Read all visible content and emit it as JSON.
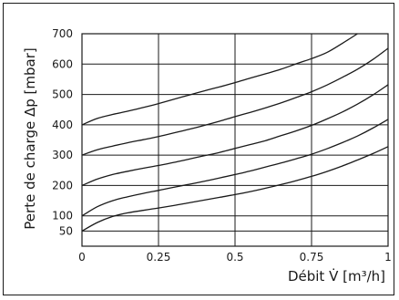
{
  "chart_data": {
    "type": "line",
    "title": "",
    "xlabel": "Débit V̇ [m³/h]",
    "ylabel": "Perte de charge Δp [mbar]",
    "xlim": [
      0,
      1
    ],
    "ylim": [
      0,
      700
    ],
    "x_ticks": [
      "0",
      "0.25",
      "0.5",
      "0.75",
      "1"
    ],
    "y_ticks": [
      "50",
      "100",
      "200",
      "300",
      "400",
      "500",
      "600",
      "700"
    ],
    "y_tick_values": [
      50,
      100,
      200,
      300,
      400,
      500,
      600,
      700
    ],
    "x_grid": [
      0,
      0.25,
      0.5,
      0.75,
      1
    ],
    "grid": true,
    "series": [
      {
        "x": [
          0,
          0.05,
          0.1,
          0.15,
          0.2,
          0.25,
          0.3,
          0.35,
          0.4,
          0.45,
          0.5,
          0.55,
          0.6,
          0.65,
          0.7,
          0.75,
          0.8,
          0.85,
          0.9
        ],
        "values": [
          400,
          421,
          434,
          445,
          457,
          470,
          484,
          498,
          512,
          525,
          539,
          554,
          568,
          583,
          601,
          618,
          638,
          668,
          700
        ]
      },
      {
        "x": [
          0,
          0.05,
          0.1,
          0.15,
          0.2,
          0.25,
          0.3,
          0.35,
          0.4,
          0.45,
          0.5,
          0.55,
          0.6,
          0.65,
          0.7,
          0.75,
          0.8,
          0.85,
          0.9,
          0.95,
          1
        ],
        "values": [
          300,
          318,
          330,
          341,
          351,
          361,
          373,
          385,
          398,
          412,
          427,
          441,
          456,
          472,
          490,
          509,
          531,
          556,
          583,
          615,
          652
        ]
      },
      {
        "x": [
          0,
          0.05,
          0.1,
          0.15,
          0.2,
          0.25,
          0.3,
          0.35,
          0.4,
          0.45,
          0.5,
          0.55,
          0.6,
          0.65,
          0.7,
          0.75,
          0.8,
          0.85,
          0.9,
          0.95,
          1
        ],
        "values": [
          200,
          221,
          236,
          247,
          257,
          266,
          276,
          287,
          298,
          309,
          322,
          335,
          348,
          364,
          380,
          398,
          419,
          442,
          468,
          498,
          532
        ]
      },
      {
        "x": [
          0,
          0.05,
          0.1,
          0.15,
          0.2,
          0.25,
          0.3,
          0.35,
          0.4,
          0.45,
          0.5,
          0.55,
          0.6,
          0.65,
          0.7,
          0.75,
          0.8,
          0.85,
          0.9,
          0.95,
          1
        ],
        "values": [
          100,
          130,
          150,
          163,
          174,
          184,
          194,
          204,
          214,
          225,
          236,
          248,
          261,
          274,
          288,
          303,
          321,
          341,
          363,
          389,
          418
        ]
      },
      {
        "x": [
          0,
          0.05,
          0.1,
          0.15,
          0.2,
          0.25,
          0.3,
          0.35,
          0.4,
          0.45,
          0.5,
          0.55,
          0.6,
          0.65,
          0.7,
          0.75,
          0.8,
          0.85,
          0.9,
          0.95,
          1
        ],
        "values": [
          50,
          78,
          98,
          110,
          118,
          126,
          134,
          143,
          152,
          161,
          170,
          180,
          191,
          203,
          216,
          230,
          246,
          264,
          284,
          305,
          328
        ]
      }
    ]
  }
}
